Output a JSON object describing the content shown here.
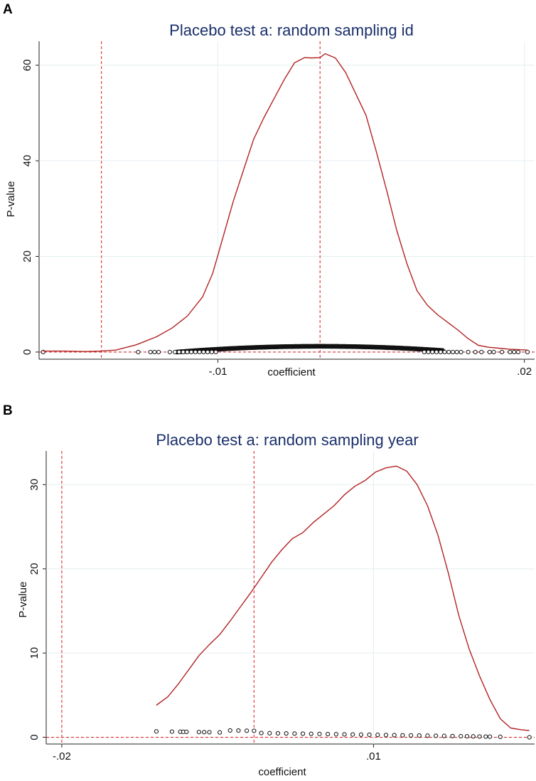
{
  "chart_data": [
    {
      "panel": "A",
      "type": "line",
      "title": "Placebo test a: random sampling id",
      "xlabel": "coefficient",
      "ylabel": "P-value",
      "xlim": [
        -0.0275,
        0.021
      ],
      "ylim": [
        -1.5,
        65
      ],
      "xticks": [
        {
          "value": -0.01,
          "label": "-.01"
        },
        {
          "value": 0.02,
          "label": ".02"
        }
      ],
      "yticks": [
        {
          "value": 0,
          "label": "0"
        },
        {
          "value": 20,
          "label": "20"
        },
        {
          "value": 40,
          "label": "40"
        },
        {
          "value": 60,
          "label": "60"
        }
      ],
      "vlines": [
        -0.0214,
        0.0
      ],
      "hlines": [
        0
      ],
      "series": [
        {
          "name": "density",
          "color": "#b22222",
          "x": [
            -0.0271,
            -0.025,
            -0.023,
            -0.0215,
            -0.02,
            -0.018,
            -0.016,
            -0.0145,
            -0.013,
            -0.0115,
            -0.0105,
            -0.0095,
            -0.0085,
            -0.0075,
            -0.0065,
            -0.0055,
            -0.0045,
            -0.0035,
            -0.0025,
            -0.0015,
            -0.0008,
            0.0,
            0.0005,
            0.0015,
            0.0025,
            0.0035,
            0.0045,
            0.0055,
            0.0065,
            0.0075,
            0.0085,
            0.0095,
            0.0105,
            0.0115,
            0.0125,
            0.0135,
            0.0145,
            0.0155,
            0.0165,
            0.0175,
            0.0185,
            0.0195,
            0.0203
          ],
          "y": [
            0.2,
            0.2,
            0.1,
            0.2,
            0.4,
            1.5,
            3.2,
            5.0,
            7.5,
            11.5,
            16.5,
            24.0,
            31.5,
            38.0,
            44.5,
            49.0,
            53.0,
            57.0,
            60.5,
            61.6,
            61.5,
            61.6,
            62.4,
            61.5,
            58.5,
            54.0,
            49.5,
            42.0,
            34.0,
            25.5,
            18.5,
            12.8,
            9.8,
            7.8,
            6.2,
            4.6,
            2.8,
            1.4,
            1.0,
            0.8,
            0.6,
            0.5,
            0.4
          ]
        }
      ],
      "scatter_band": {
        "x_range": [
          -0.014,
          0.012
        ],
        "y_peak": 1.2,
        "y_edge": 0.0,
        "peak_x": 0.0
      },
      "scatter_points": [
        -0.0271,
        -0.0178,
        -0.0166,
        -0.0162,
        -0.0158,
        -0.0147,
        -0.0142,
        -0.0138,
        -0.0134,
        -0.013,
        -0.0126,
        -0.0122,
        -0.0118,
        -0.0114,
        -0.011,
        -0.0106,
        -0.0102,
        0.0102,
        0.0106,
        0.011,
        0.0114,
        0.0118,
        0.0122,
        0.0126,
        0.013,
        0.0134,
        0.0138,
        0.0145,
        0.0152,
        0.0158,
        0.0166,
        0.017,
        0.0178,
        0.0186,
        0.019,
        0.0194,
        0.0203
      ]
    },
    {
      "panel": "B",
      "type": "line",
      "title": "Placebo test a: random sampling year",
      "xlabel": "coefficient",
      "ylabel": "P-value",
      "xlim": [
        -0.0215,
        0.0255
      ],
      "ylim": [
        -0.8,
        34
      ],
      "xticks": [
        {
          "value": -0.02,
          "label": "-.02"
        },
        {
          "value": 0.01,
          "label": ".01"
        }
      ],
      "yticks": [
        {
          "value": 0,
          "label": "0"
        },
        {
          "value": 10,
          "label": "10"
        },
        {
          "value": 20,
          "label": "20"
        },
        {
          "value": 30,
          "label": "30"
        }
      ],
      "vlines": [
        -0.02,
        -0.0015
      ],
      "hlines": [
        0
      ],
      "series": [
        {
          "name": "density",
          "color": "#b22222",
          "x": [
            -0.0109,
            -0.0098,
            -0.0088,
            -0.0078,
            -0.0068,
            -0.0058,
            -0.0048,
            -0.0038,
            -0.0028,
            -0.0018,
            -0.0008,
            0.0002,
            0.0012,
            0.0022,
            0.0032,
            0.0042,
            0.0052,
            0.0062,
            0.0072,
            0.0082,
            0.0092,
            0.0102,
            0.0112,
            0.0122,
            0.0132,
            0.0142,
            0.0152,
            0.0162,
            0.0172,
            0.0182,
            0.0192,
            0.0202,
            0.0212,
            0.0222,
            0.0232,
            0.0242,
            0.025
          ],
          "y": [
            3.8,
            4.8,
            6.3,
            8.0,
            9.7,
            11.0,
            12.2,
            13.8,
            15.5,
            17.2,
            19.0,
            20.8,
            22.3,
            23.6,
            24.3,
            25.5,
            26.5,
            27.5,
            28.8,
            29.8,
            30.5,
            31.5,
            32.0,
            32.2,
            31.6,
            30.0,
            27.5,
            24.0,
            19.5,
            14.5,
            10.5,
            7.3,
            4.5,
            2.2,
            1.1,
            0.9,
            0.8
          ]
        }
      ],
      "scatter_points": [
        -0.0109,
        -0.0094,
        -0.0086,
        -0.0083,
        -0.008,
        -0.0068,
        -0.0063,
        -0.0058,
        -0.0048,
        -0.0038,
        -0.003,
        -0.0022,
        -0.0015,
        -0.0008,
        0.0,
        0.0008,
        0.0016,
        0.0024,
        0.0032,
        0.004,
        0.0048,
        0.0056,
        0.0064,
        0.0072,
        0.008,
        0.0088,
        0.0096,
        0.0104,
        0.0112,
        0.012,
        0.0128,
        0.0136,
        0.0144,
        0.0152,
        0.016,
        0.0168,
        0.0176,
        0.0184,
        0.019,
        0.0196,
        0.0202,
        0.0208,
        0.0212,
        0.0222,
        0.025
      ]
    }
  ]
}
